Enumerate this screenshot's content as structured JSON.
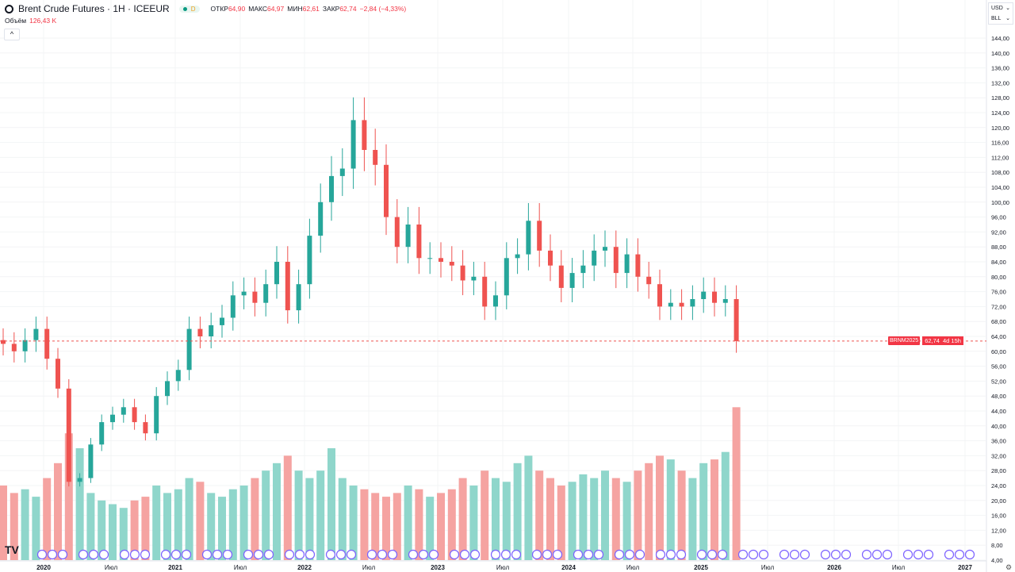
{
  "header": {
    "title": "Brent Crude Futures · 1H · ICEEUR",
    "interval_badge": "D",
    "ohlc": [
      {
        "label": "ОТКР",
        "value": "64,90"
      },
      {
        "label": "МАКС",
        "value": "64,97"
      },
      {
        "label": "МИН",
        "value": "62,61"
      },
      {
        "label": "ЗАКР",
        "value": "62,74"
      },
      {
        "label": "",
        "value": "−2,84 (−4,33%)"
      }
    ],
    "volume_label": "Объём",
    "volume_value": "126,43 K",
    "collapse": "^"
  },
  "units": {
    "currency": "USD",
    "unit": "BLL"
  },
  "price_label": {
    "symbol": "BRNM2025",
    "price": "62,74",
    "countdown": "4d 15h"
  },
  "logo": "TV",
  "settings_icon": "⚙",
  "colors": {
    "up": "#26a69a",
    "down": "#ef5350",
    "up_vol": "#8fd6cb",
    "down_vol": "#f5a3a1",
    "event": "#7b61ff"
  },
  "chart_data": {
    "type": "candlestick",
    "title": "Brent Crude Futures",
    "y_ticks": [
      "4,00",
      "8,00",
      "12,00",
      "16,00",
      "20,00",
      "24,00",
      "28,00",
      "32,00",
      "36,00",
      "40,00",
      "44,00",
      "48,00",
      "52,00",
      "56,00",
      "60,00",
      "64,00",
      "68,00",
      "72,00",
      "76,00",
      "80,00",
      "84,00",
      "88,00",
      "92,00",
      "96,00",
      "100,00",
      "104,00",
      "108,00",
      "112,00",
      "116,00",
      "120,00",
      "124,00",
      "128,00",
      "132,00",
      "136,00",
      "140,00",
      "144,00"
    ],
    "ylim": [
      4,
      144
    ],
    "x_ticks": [
      "2020",
      "Июл",
      "2021",
      "Июл",
      "2022",
      "Июл",
      "2023",
      "Июл",
      "2024",
      "Июл",
      "2025",
      "Июл",
      "2026",
      "Июл",
      "2027"
    ],
    "start": "2019-09",
    "closes": [
      62,
      60,
      63,
      66,
      58,
      50,
      25,
      26,
      35,
      41,
      43,
      45,
      41,
      38,
      48,
      52,
      55,
      66,
      64,
      67,
      69,
      75,
      76,
      73,
      78,
      84,
      71,
      78,
      91,
      100,
      107,
      109,
      122,
      114,
      110,
      96,
      88,
      94,
      85,
      85,
      84,
      83,
      79,
      80,
      72,
      75,
      85,
      86,
      95,
      87,
      83,
      77,
      81,
      83,
      87,
      88,
      81,
      86,
      80,
      78,
      72,
      73,
      72,
      74,
      76,
      73,
      74,
      62.74
    ],
    "volume": [
      20,
      18,
      19,
      17,
      22,
      26,
      34,
      30,
      18,
      16,
      15,
      14,
      16,
      17,
      20,
      18,
      19,
      22,
      21,
      18,
      17,
      19,
      20,
      22,
      24,
      26,
      28,
      24,
      22,
      24,
      30,
      22,
      20,
      19,
      18,
      17,
      18,
      20,
      19,
      17,
      18,
      19,
      22,
      20,
      24,
      22,
      21,
      26,
      28,
      24,
      22,
      20,
      21,
      23,
      22,
      24,
      22,
      21,
      24,
      26,
      28,
      27,
      24,
      22,
      26,
      27,
      29,
      41
    ],
    "last_price": 62.74
  }
}
